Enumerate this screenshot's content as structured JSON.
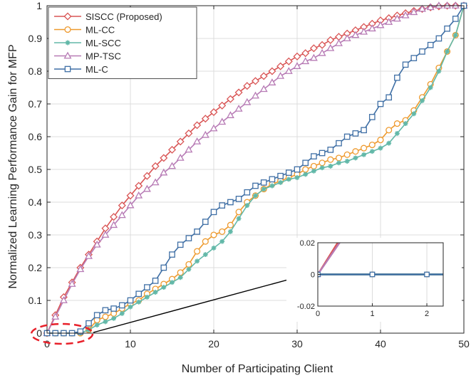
{
  "chart_data": {
    "type": "line",
    "title": "",
    "xlabel": "Number of Participating Client",
    "ylabel": "Normalized Learning Performance Gain for MFP",
    "xlim": [
      0,
      50
    ],
    "ylim": [
      0,
      1
    ],
    "x_ticks": [
      "0",
      "10",
      "20",
      "30",
      "40",
      "50"
    ],
    "y_ticks": [
      "0",
      "0.1",
      "0.2",
      "0.3",
      "0.4",
      "0.5",
      "0.6",
      "0.7",
      "0.8",
      "0.9",
      "1"
    ],
    "grid": true,
    "legend_position": "top-left",
    "series": [
      {
        "name": "SISCC (Proposed)",
        "color": "#D95555",
        "marker": "diamond",
        "x": [
          0,
          1,
          2,
          3,
          4,
          5,
          6,
          7,
          8,
          9,
          10,
          11,
          12,
          13,
          14,
          15,
          16,
          17,
          18,
          19,
          20,
          21,
          22,
          23,
          24,
          25,
          26,
          27,
          28,
          29,
          30,
          31,
          32,
          33,
          34,
          35,
          36,
          37,
          38,
          39,
          40,
          41,
          42,
          43,
          44,
          45,
          46,
          47,
          48,
          49,
          50
        ],
        "y": [
          0,
          0.055,
          0.11,
          0.155,
          0.2,
          0.24,
          0.28,
          0.32,
          0.355,
          0.39,
          0.42,
          0.45,
          0.48,
          0.51,
          0.535,
          0.56,
          0.585,
          0.61,
          0.635,
          0.655,
          0.675,
          0.695,
          0.715,
          0.735,
          0.755,
          0.77,
          0.785,
          0.8,
          0.815,
          0.83,
          0.845,
          0.855,
          0.87,
          0.88,
          0.895,
          0.905,
          0.915,
          0.925,
          0.935,
          0.945,
          0.955,
          0.962,
          0.97,
          0.977,
          0.984,
          0.99,
          0.995,
          0.998,
          1,
          1,
          1
        ]
      },
      {
        "name": "ML-CC",
        "color": "#EE9A2E",
        "marker": "circle",
        "x": [
          0,
          1,
          2,
          3,
          4,
          5,
          6,
          7,
          8,
          9,
          10,
          11,
          12,
          13,
          14,
          15,
          16,
          17,
          18,
          19,
          20,
          21,
          22,
          23,
          24,
          25,
          26,
          27,
          28,
          29,
          30,
          31,
          32,
          33,
          34,
          35,
          36,
          37,
          38,
          39,
          40,
          41,
          42,
          43,
          44,
          45,
          46,
          47,
          48,
          49,
          50
        ],
        "y": [
          0,
          0,
          0,
          0,
          0,
          0.01,
          0.04,
          0.05,
          0.06,
          0.075,
          0.09,
          0.1,
          0.12,
          0.135,
          0.15,
          0.165,
          0.185,
          0.21,
          0.25,
          0.28,
          0.3,
          0.31,
          0.33,
          0.37,
          0.4,
          0.42,
          0.44,
          0.455,
          0.465,
          0.475,
          0.485,
          0.5,
          0.51,
          0.52,
          0.53,
          0.535,
          0.545,
          0.555,
          0.565,
          0.575,
          0.59,
          0.62,
          0.64,
          0.65,
          0.68,
          0.72,
          0.76,
          0.81,
          0.86,
          0.91,
          1.0
        ]
      },
      {
        "name": "ML-SCC",
        "color": "#62B8A8",
        "marker": "star",
        "x": [
          0,
          1,
          2,
          3,
          4,
          5,
          6,
          7,
          8,
          9,
          10,
          11,
          12,
          13,
          14,
          15,
          16,
          17,
          18,
          19,
          20,
          21,
          22,
          23,
          24,
          25,
          26,
          27,
          28,
          29,
          30,
          31,
          32,
          33,
          34,
          35,
          36,
          37,
          38,
          39,
          40,
          41,
          42,
          43,
          44,
          45,
          46,
          47,
          48,
          49,
          50
        ],
        "y": [
          0,
          0,
          0,
          0,
          0,
          0.01,
          0.025,
          0.035,
          0.045,
          0.06,
          0.08,
          0.095,
          0.11,
          0.125,
          0.14,
          0.155,
          0.17,
          0.195,
          0.22,
          0.24,
          0.26,
          0.28,
          0.31,
          0.35,
          0.39,
          0.42,
          0.44,
          0.45,
          0.46,
          0.47,
          0.475,
          0.485,
          0.495,
          0.505,
          0.51,
          0.52,
          0.525,
          0.535,
          0.545,
          0.555,
          0.565,
          0.58,
          0.61,
          0.64,
          0.67,
          0.71,
          0.75,
          0.8,
          0.86,
          0.91,
          1.0
        ]
      },
      {
        "name": "MP-TSC",
        "color": "#B77BB5",
        "marker": "triangle",
        "x": [
          0,
          1,
          2,
          3,
          4,
          5,
          6,
          7,
          8,
          9,
          10,
          11,
          12,
          13,
          14,
          15,
          16,
          17,
          18,
          19,
          20,
          21,
          22,
          23,
          24,
          25,
          26,
          27,
          28,
          29,
          30,
          31,
          32,
          33,
          34,
          35,
          36,
          37,
          38,
          39,
          40,
          41,
          42,
          43,
          44,
          45,
          46,
          47,
          48,
          49,
          50
        ],
        "y": [
          0,
          0.05,
          0.1,
          0.15,
          0.195,
          0.235,
          0.27,
          0.3,
          0.33,
          0.36,
          0.39,
          0.42,
          0.44,
          0.46,
          0.49,
          0.51,
          0.535,
          0.56,
          0.585,
          0.605,
          0.625,
          0.645,
          0.665,
          0.685,
          0.705,
          0.725,
          0.745,
          0.765,
          0.785,
          0.8,
          0.815,
          0.83,
          0.84,
          0.855,
          0.87,
          0.885,
          0.9,
          0.91,
          0.92,
          0.93,
          0.94,
          0.95,
          0.96,
          0.97,
          0.98,
          0.99,
          0.995,
          1,
          1,
          1,
          1
        ]
      },
      {
        "name": "ML-C",
        "color": "#3F6FA5",
        "marker": "square",
        "x": [
          0,
          1,
          2,
          3,
          4,
          5,
          6,
          7,
          8,
          9,
          10,
          11,
          12,
          13,
          14,
          15,
          16,
          17,
          18,
          19,
          20,
          21,
          22,
          23,
          24,
          25,
          26,
          27,
          28,
          29,
          30,
          31,
          32,
          33,
          34,
          35,
          36,
          37,
          38,
          39,
          40,
          41,
          42,
          43,
          44,
          45,
          46,
          47,
          48,
          49,
          50
        ],
        "y": [
          0,
          0,
          0,
          0,
          0.005,
          0.03,
          0.055,
          0.07,
          0.075,
          0.085,
          0.1,
          0.12,
          0.14,
          0.16,
          0.2,
          0.24,
          0.27,
          0.29,
          0.31,
          0.34,
          0.37,
          0.39,
          0.4,
          0.41,
          0.43,
          0.45,
          0.46,
          0.47,
          0.48,
          0.49,
          0.5,
          0.52,
          0.54,
          0.55,
          0.56,
          0.58,
          0.6,
          0.61,
          0.62,
          0.66,
          0.7,
          0.72,
          0.78,
          0.82,
          0.84,
          0.86,
          0.88,
          0.9,
          0.93,
          0.96,
          1.0
        ]
      }
    ],
    "inset": {
      "xlim": [
        0,
        2.3
      ],
      "ylim": [
        -0.02,
        0.02
      ],
      "x_ticks": [
        "0",
        "1",
        "2"
      ],
      "y_ticks": [
        "0.02",
        "0",
        "-0.02"
      ]
    }
  }
}
